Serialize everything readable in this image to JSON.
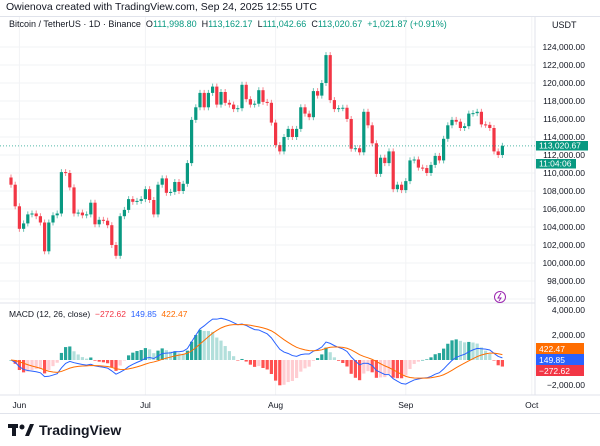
{
  "credit": "Owienova created with TradingView.com, Sep 24, 2025 12:55 UTC",
  "legend": {
    "symbol": "Bitcoin / TetherUS · 1D · Binance",
    "o_label": "O",
    "o": "111,998.80",
    "h_label": "H",
    "h": "113,162.17",
    "l_label": "L",
    "l": "111,042.66",
    "c_label": "C",
    "c": "113,020.67",
    "change": "+1,021.87 (+0.91%)"
  },
  "currency": "USDT",
  "price_label": {
    "value": "113,020.67",
    "countdown": "11:04:06"
  },
  "macd": {
    "title": "MACD (12, 26, close)",
    "hist": "−272.62",
    "macd": "149.85",
    "signal": "422.47"
  },
  "brand": "TradingView",
  "colors": {
    "up": "#089981",
    "down": "#f23645",
    "macd": "#2962ff",
    "signal": "#ff6d00",
    "badge": "#9c27b0"
  },
  "icons": {
    "alert": "lightning-icon"
  },
  "chart_data": {
    "type": "candlestick",
    "start_date": "2025-05-30",
    "first_open": 109500,
    "closes": [
      108700,
      106300,
      103800,
      104400,
      105400,
      105500,
      105200,
      104500,
      101300,
      104500,
      105300,
      105500,
      110100,
      110000,
      108400,
      105500,
      105600,
      105300,
      105400,
      106700,
      104300,
      104800,
      104700,
      104200,
      102000,
      100800,
      105200,
      105900,
      107100,
      106800,
      106900,
      107100,
      108200,
      107000,
      105400,
      108700,
      109400,
      107800,
      107900,
      109000,
      108000,
      108800,
      111100,
      115900,
      117300,
      118900,
      117300,
      118900,
      119600,
      117600,
      119000,
      117800,
      117600,
      117100,
      117200,
      119800,
      118200,
      117600,
      117700,
      119200,
      117900,
      117800,
      115600,
      113100,
      112400,
      114000,
      114900,
      114000,
      114900,
      117300,
      116600,
      116200,
      119100,
      118600,
      120000,
      123100,
      118100,
      117100,
      117200,
      117250,
      116000,
      112700,
      112750,
      112300,
      116800,
      115300,
      113300,
      109900,
      111700,
      111100,
      112400,
      108200,
      108700,
      108100,
      109100,
      111400,
      111500,
      110600,
      110550,
      110000,
      110900,
      111900,
      111400,
      113800,
      115300,
      115900,
      115700,
      115000,
      115200,
      116600,
      116650,
      116800,
      115400,
      115350,
      115000,
      112400,
      111998.8,
      113020.67
    ],
    "y_ticks": [
      "124,000.00",
      "122,000.00",
      "120,000.00",
      "118,000.00",
      "116,000.00",
      "114,000.00",
      "112,000.00",
      "110,000.00",
      "108,000.00",
      "106,000.00",
      "104,000.00",
      "102,000.00",
      "100,000.00",
      "98,000.00",
      "96,000.00"
    ],
    "y_range": [
      96000,
      124000
    ],
    "x_ticks": [
      {
        "label": "Jun",
        "date": "2025-06-01"
      },
      {
        "label": "Jul",
        "date": "2025-07-01"
      },
      {
        "label": "Aug",
        "date": "2025-08-01"
      },
      {
        "label": "Sep",
        "date": "2025-09-01"
      },
      {
        "label": "Oct",
        "date": "2025-10-01"
      }
    ],
    "macd_ticks": [
      "4,000.00",
      "2,000.00",
      "−2,000.00"
    ],
    "macd_tick_values": [
      4000,
      2000,
      -2000
    ],
    "grid": true
  }
}
